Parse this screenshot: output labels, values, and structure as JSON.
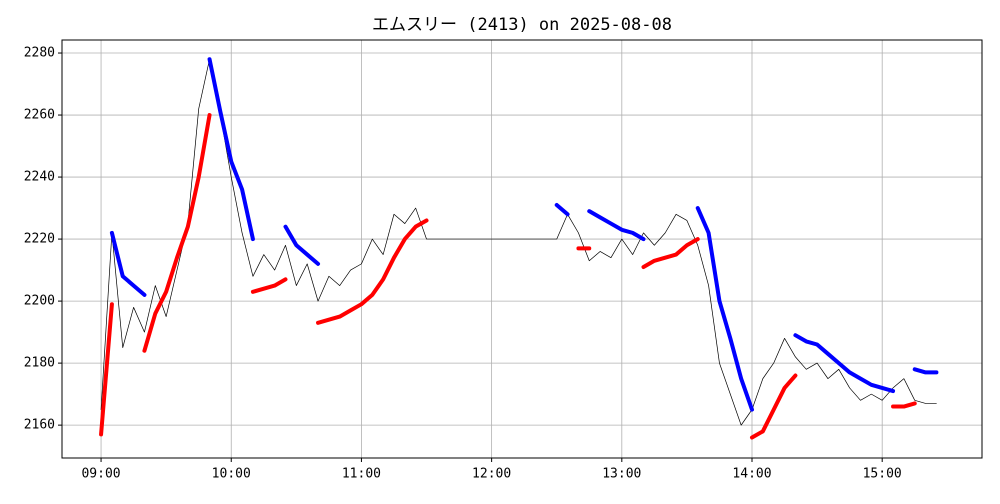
{
  "chart_data": {
    "type": "line",
    "title": "エムスリー (2413) on 2025-08-08",
    "x": [
      "09:00",
      "09:05",
      "09:10",
      "09:15",
      "09:20",
      "09:25",
      "09:30",
      "09:35",
      "09:40",
      "09:45",
      "09:50",
      "09:55",
      "10:00",
      "10:05",
      "10:10",
      "10:15",
      "10:20",
      "10:25",
      "10:30",
      "10:35",
      "10:40",
      "10:45",
      "10:50",
      "10:55",
      "11:00",
      "11:05",
      "11:10",
      "11:15",
      "11:20",
      "11:25",
      "11:30",
      "12:30",
      "12:35",
      "12:40",
      "12:45",
      "12:50",
      "12:55",
      "13:00",
      "13:05",
      "13:10",
      "13:15",
      "13:20",
      "13:25",
      "13:30",
      "13:35",
      "13:40",
      "13:45",
      "13:50",
      "13:55",
      "14:00",
      "14:05",
      "14:10",
      "14:15",
      "14:20",
      "14:25",
      "14:30",
      "14:35",
      "14:40",
      "14:45",
      "14:50",
      "14:55",
      "15:00",
      "15:05",
      "15:10",
      "15:15",
      "15:20",
      "15:25"
    ],
    "series": [
      {
        "color": "#000000",
        "width": 0.7,
        "values": [
          2165,
          2222,
          2185,
          2198,
          2190,
          2205,
          2195,
          2210,
          2225,
          2262,
          2278,
          2260,
          2240,
          2222,
          2208,
          2215,
          2210,
          2218,
          2205,
          2212,
          2200,
          2208,
          2205,
          2210,
          2212,
          2220,
          2215,
          2228,
          2225,
          2230,
          2220,
          2220,
          2228,
          2222,
          2213,
          2216,
          2214,
          2220,
          2215,
          2222,
          2218,
          2222,
          2228,
          2226,
          2218,
          2205,
          2180,
          2170,
          2160,
          2165,
          2175,
          2180,
          2188,
          2182,
          2178,
          2180,
          2175,
          2178,
          2172,
          2168,
          2170,
          2168,
          2172,
          2175,
          2168,
          2167,
          2167
        ]
      },
      {
        "color": "#ff0000",
        "width": 4,
        "values": [
          2157,
          2199,
          null,
          null,
          2184,
          2196,
          2203,
          2214,
          2224,
          2240,
          2260,
          null,
          null,
          null,
          2203,
          2204,
          2205,
          2207,
          null,
          null,
          2193,
          2194,
          2195,
          2197,
          2199,
          2202,
          2207,
          2214,
          2220,
          2224,
          2226,
          null,
          null,
          2217,
          2217,
          null,
          null,
          null,
          null,
          2211,
          2213,
          2214,
          2215,
          2218,
          2220,
          null,
          null,
          null,
          null,
          2156,
          2158,
          2165,
          2172,
          2176,
          null,
          null,
          null,
          null,
          null,
          null,
          null,
          null,
          2166,
          2166,
          2167,
          null,
          null
        ]
      },
      {
        "color": "#0000ff",
        "width": 4,
        "values": [
          null,
          2222,
          2208,
          2205,
          2202,
          null,
          null,
          null,
          null,
          null,
          2278,
          2261,
          2245,
          2236,
          2220,
          null,
          null,
          2224,
          2218,
          2215,
          2212,
          null,
          null,
          null,
          null,
          null,
          null,
          null,
          null,
          null,
          null,
          2231,
          2228,
          null,
          2229,
          2227,
          2225,
          2223,
          2222,
          2220,
          null,
          null,
          null,
          null,
          2230,
          2222,
          2200,
          2188,
          2175,
          2165,
          null,
          null,
          null,
          2189,
          2187,
          2186,
          2183,
          2180,
          2177,
          2175,
          2173,
          2172,
          2171,
          null,
          2178,
          2177,
          2177
        ]
      }
    ],
    "xlim": [
      "08:42",
      "15:46"
    ],
    "xticks": [
      "09:00",
      "10:00",
      "11:00",
      "12:00",
      "13:00",
      "14:00",
      "15:00"
    ],
    "ylim": [
      2149.4,
      2284.2
    ],
    "yticks": [
      2160,
      2180,
      2200,
      2220,
      2240,
      2260,
      2280
    ],
    "grid": true
  }
}
